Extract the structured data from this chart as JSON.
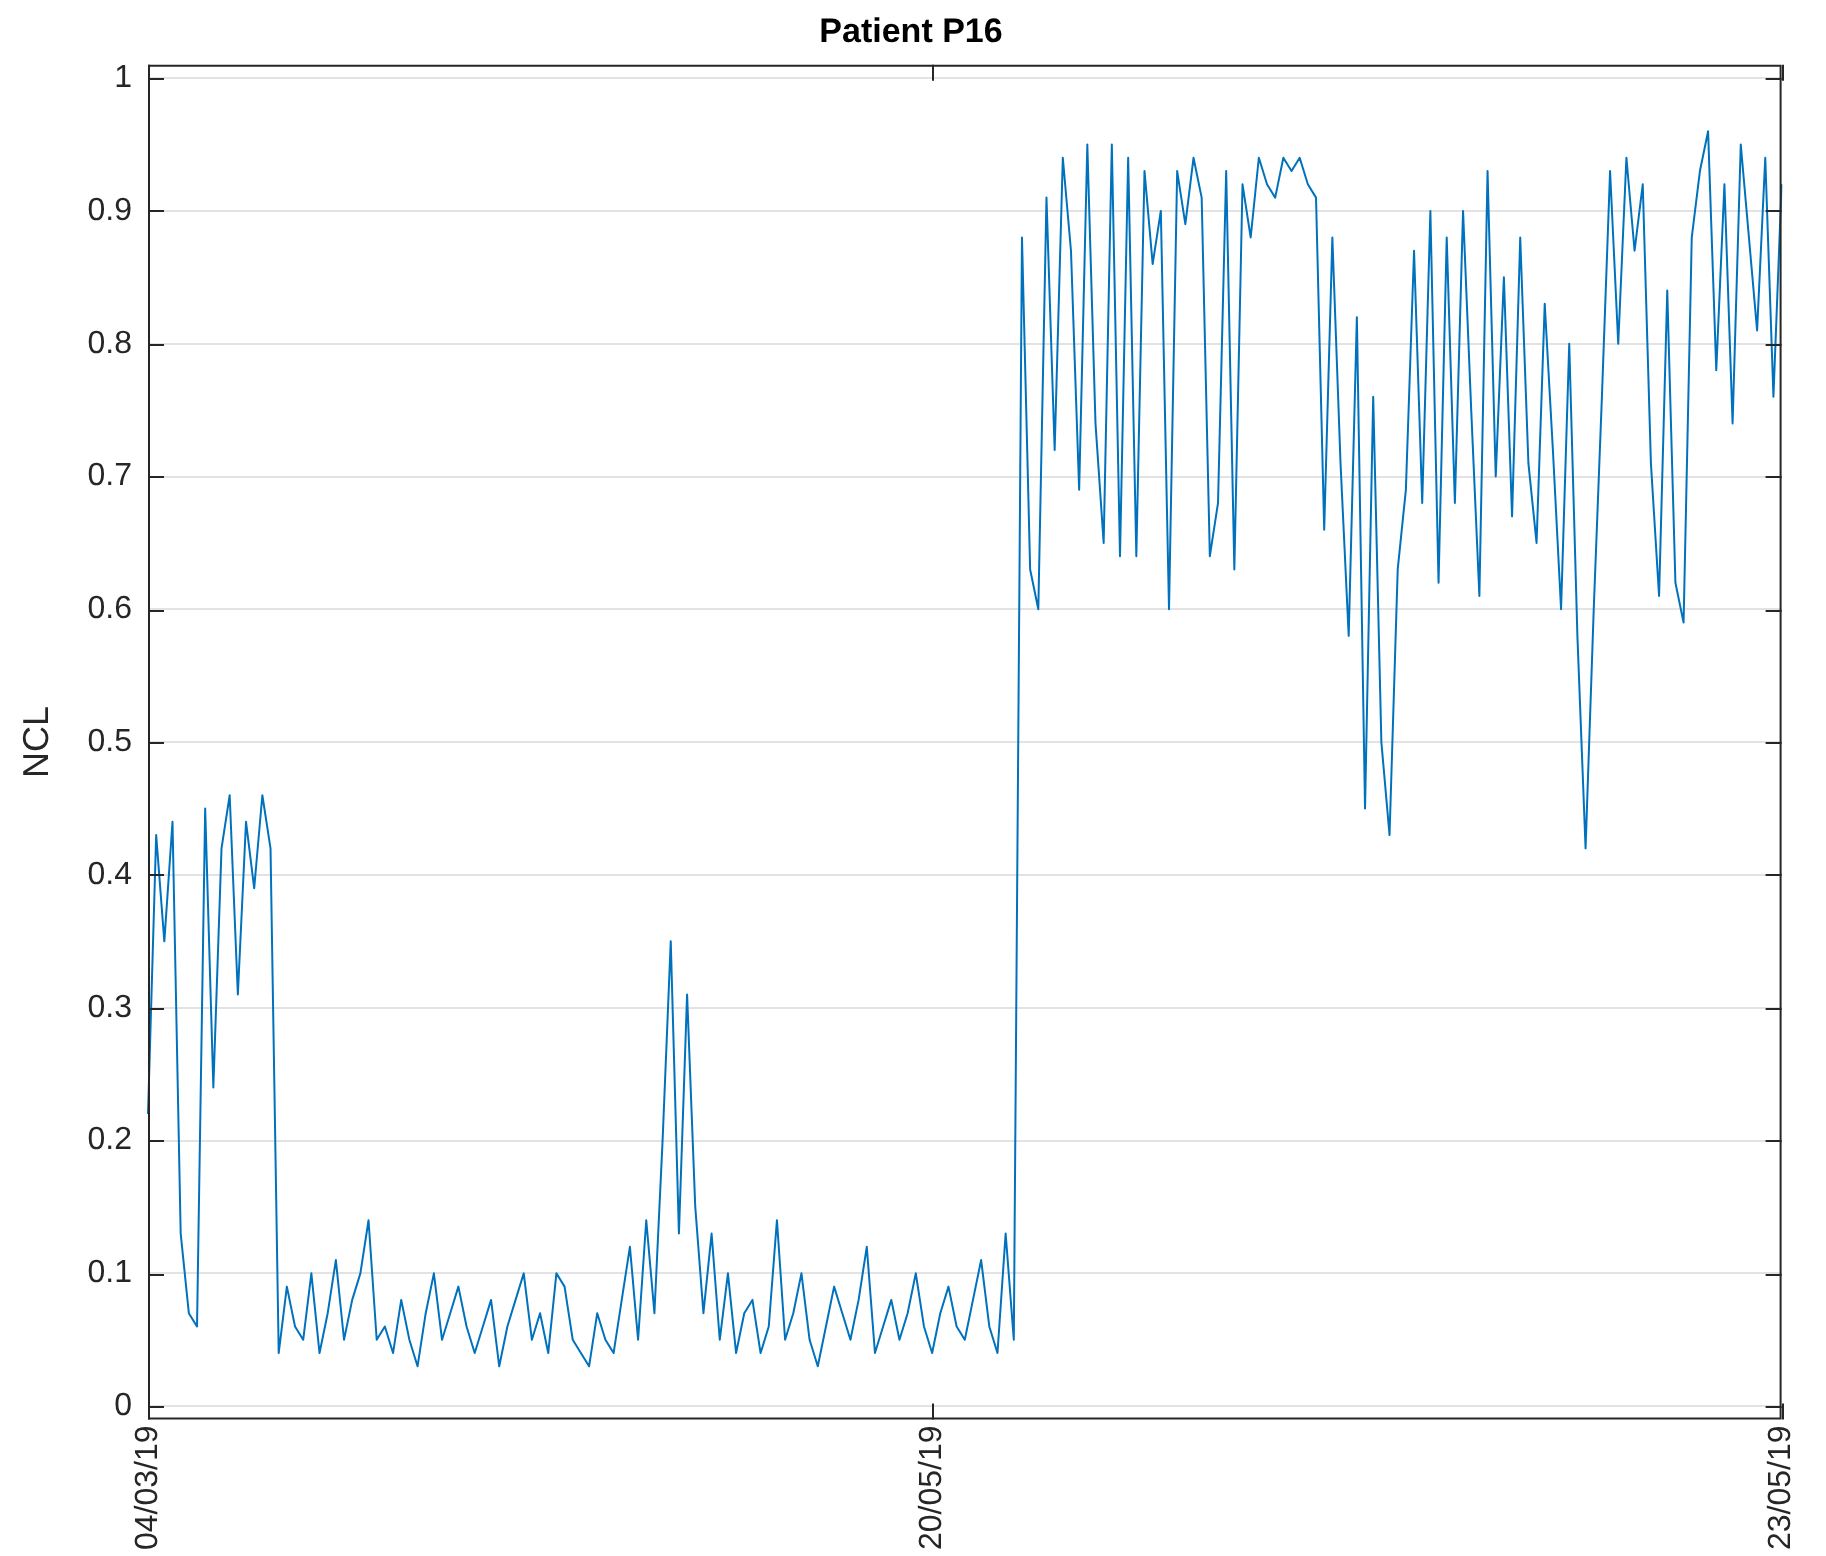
{
  "chart_data": {
    "type": "line",
    "title": "Patient P16",
    "ylabel": "NCL",
    "color": "#0072bd",
    "grid": "y",
    "legend": false,
    "marker": "none",
    "line_style": "solid",
    "ylim": [
      -0.01,
      1.01
    ],
    "yticks": [
      0,
      0.1,
      0.2,
      0.3,
      0.4,
      0.5,
      0.6,
      0.7,
      0.8,
      0.9,
      1
    ],
    "categories": [
      "04/03/19",
      null,
      null,
      null,
      null,
      null,
      null,
      null,
      null,
      null,
      null,
      null,
      null,
      null,
      null,
      null,
      null,
      null,
      null,
      null,
      null,
      null,
      null,
      null,
      null,
      null,
      null,
      null,
      null,
      null,
      null,
      null,
      null,
      null,
      null,
      null,
      null,
      null,
      null,
      null,
      null,
      null,
      null,
      null,
      null,
      null,
      null,
      null,
      null,
      null,
      null,
      null,
      null,
      null,
      null,
      null,
      null,
      null,
      null,
      null,
      null,
      null,
      null,
      null,
      null,
      null,
      null,
      null,
      null,
      null,
      null,
      null,
      null,
      null,
      null,
      null,
      null,
      null,
      null,
      null,
      null,
      null,
      null,
      null,
      null,
      null,
      null,
      null,
      null,
      null,
      null,
      null,
      null,
      null,
      null,
      null,
      "20/05/19",
      null,
      null,
      null,
      null,
      null,
      null,
      null,
      null,
      null,
      null,
      null,
      null,
      null,
      null,
      null,
      null,
      null,
      null,
      null,
      null,
      null,
      null,
      null,
      null,
      null,
      null,
      null,
      null,
      null,
      null,
      null,
      null,
      null,
      null,
      null,
      null,
      null,
      null,
      null,
      null,
      null,
      null,
      null,
      null,
      null,
      null,
      null,
      null,
      null,
      null,
      null,
      null,
      null,
      null,
      null,
      null,
      null,
      null,
      null,
      null,
      null,
      null,
      null,
      null,
      null,
      null,
      null,
      null,
      null,
      null,
      null,
      null,
      null,
      null,
      null,
      null,
      null,
      null,
      null,
      null,
      null,
      null,
      null,
      null,
      null,
      null,
      null,
      null,
      null,
      null,
      null,
      null,
      null,
      null,
      null,
      null,
      null,
      null,
      null,
      null,
      null,
      null,
      null,
      "23/05/19"
    ],
    "values": [
      0.22,
      0.43,
      0.35,
      0.44,
      0.13,
      0.07,
      0.06,
      0.45,
      0.24,
      0.42,
      0.46,
      0.31,
      0.44,
      0.39,
      0.46,
      0.42,
      0.04,
      0.09,
      0.06,
      0.05,
      0.1,
      0.04,
      0.07,
      0.11,
      0.05,
      0.08,
      0.1,
      0.14,
      0.05,
      0.06,
      0.04,
      0.08,
      0.05,
      0.03,
      0.07,
      0.1,
      0.05,
      0.07,
      0.09,
      0.06,
      0.04,
      0.06,
      0.08,
      0.03,
      0.06,
      0.08,
      0.1,
      0.05,
      0.07,
      0.04,
      0.1,
      0.09,
      0.05,
      0.04,
      0.03,
      0.07,
      0.05,
      0.04,
      0.08,
      0.12,
      0.05,
      0.14,
      0.07,
      0.2,
      0.35,
      0.13,
      0.31,
      0.15,
      0.07,
      0.13,
      0.05,
      0.1,
      0.04,
      0.07,
      0.08,
      0.04,
      0.06,
      0.14,
      0.05,
      0.07,
      0.1,
      0.05,
      0.03,
      0.06,
      0.09,
      0.07,
      0.05,
      0.08,
      0.12,
      0.04,
      0.06,
      0.08,
      0.05,
      0.07,
      0.1,
      0.06,
      0.04,
      0.07,
      0.09,
      0.06,
      0.05,
      0.08,
      0.11,
      0.06,
      0.04,
      0.13,
      0.05,
      0.88,
      0.63,
      0.6,
      0.91,
      0.72,
      0.94,
      0.87,
      0.69,
      0.95,
      0.74,
      0.65,
      0.95,
      0.64,
      0.94,
      0.64,
      0.93,
      0.86,
      0.9,
      0.6,
      0.93,
      0.89,
      0.94,
      0.91,
      0.64,
      0.68,
      0.93,
      0.63,
      0.92,
      0.88,
      0.94,
      0.92,
      0.91,
      0.94,
      0.93,
      0.94,
      0.92,
      0.91,
      0.66,
      0.88,
      0.71,
      0.58,
      0.82,
      0.45,
      0.76,
      0.5,
      0.43,
      0.63,
      0.69,
      0.87,
      0.68,
      0.9,
      0.62,
      0.88,
      0.68,
      0.9,
      0.75,
      0.61,
      0.93,
      0.7,
      0.85,
      0.67,
      0.88,
      0.71,
      0.65,
      0.83,
      0.72,
      0.6,
      0.8,
      0.58,
      0.42,
      0.6,
      0.76,
      0.93,
      0.8,
      0.94,
      0.87,
      0.92,
      0.71,
      0.61,
      0.84,
      0.62,
      0.59,
      0.88,
      0.93,
      0.96,
      0.78,
      0.92,
      0.74,
      0.95,
      0.88,
      0.81,
      0.94,
      0.76,
      0.92
    ]
  }
}
